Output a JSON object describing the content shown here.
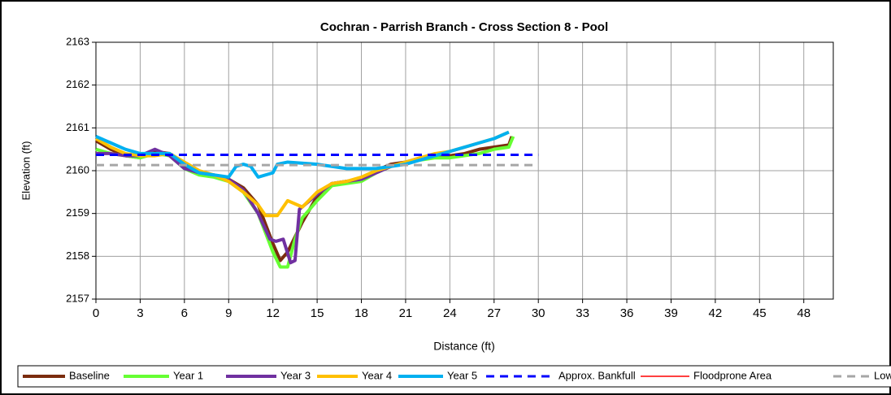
{
  "chart_data": {
    "type": "line",
    "title": "Cochran - Parrish Branch - Cross Section 8 - Pool",
    "x_label": "Distance (ft)",
    "y_label": "Elevation (ft)",
    "xlim": [
      0,
      50
    ],
    "ylim": [
      2157,
      2163
    ],
    "xticks": [
      0,
      3,
      6,
      9,
      12,
      15,
      18,
      21,
      24,
      27,
      30,
      33,
      36,
      39,
      42,
      45,
      48
    ],
    "yticks": [
      2157,
      2158,
      2159,
      2160,
      2161,
      2162,
      2163
    ],
    "grid": true,
    "legend": "bottom",
    "series": [
      {
        "name": "Baseline",
        "color": "#7b2c0e",
        "style": "solid",
        "x": [
          0,
          1,
          2,
          3,
          4,
          5,
          6,
          7,
          8,
          9,
          10,
          11,
          12,
          12.5,
          13,
          14,
          15,
          16,
          17,
          18,
          19,
          20,
          21,
          22,
          23,
          24,
          25,
          26,
          27,
          28,
          28.2
        ],
        "values": [
          2160.7,
          2160.5,
          2160.35,
          2160.3,
          2160.45,
          2160.4,
          2160.1,
          2159.95,
          2159.9,
          2159.8,
          2159.6,
          2159.2,
          2158.3,
          2157.9,
          2158.1,
          2158.8,
          2159.4,
          2159.7,
          2159.75,
          2159.8,
          2160.0,
          2160.15,
          2160.2,
          2160.3,
          2160.35,
          2160.35,
          2160.4,
          2160.5,
          2160.55,
          2160.6,
          2160.8
        ]
      },
      {
        "name": "Year 1",
        "color": "#66ff33",
        "style": "solid",
        "x": [
          0,
          1,
          2,
          3,
          4,
          5,
          6,
          7,
          8,
          9,
          10,
          11,
          12,
          12.5,
          13,
          13.5,
          14,
          15,
          16,
          17,
          18,
          19,
          20,
          21,
          22,
          23,
          24,
          25,
          26,
          27,
          28,
          28.3
        ],
        "values": [
          2160.5,
          2160.4,
          2160.35,
          2160.3,
          2160.4,
          2160.35,
          2160.05,
          2159.9,
          2159.85,
          2159.75,
          2159.5,
          2159.0,
          2158.1,
          2157.75,
          2157.75,
          2158.4,
          2158.9,
          2159.3,
          2159.65,
          2159.7,
          2159.75,
          2159.95,
          2160.1,
          2160.2,
          2160.25,
          2160.3,
          2160.3,
          2160.35,
          2160.4,
          2160.5,
          2160.55,
          2160.8
        ]
      },
      {
        "name": "Year 3",
        "color": "#7030a0",
        "style": "solid",
        "x": [
          0,
          1,
          2,
          3,
          4,
          5,
          6,
          7,
          8,
          9,
          10,
          11,
          11.8,
          12.2,
          12.7,
          13.2,
          13.5,
          13.8,
          14.5,
          15,
          16,
          17,
          18,
          19,
          20,
          21
        ],
        "values": [
          2160.4,
          2160.4,
          2160.35,
          2160.35,
          2160.5,
          2160.35,
          2160.05,
          2159.95,
          2159.9,
          2159.8,
          2159.55,
          2159.0,
          2158.4,
          2158.35,
          2158.4,
          2157.85,
          2157.9,
          2159.1,
          2159.3,
          2159.45,
          2159.7,
          2159.75,
          2159.8,
          2159.95,
          2160.1,
          2160.2
        ]
      },
      {
        "name": "Year 4",
        "color": "#ffc000",
        "style": "solid",
        "x": [
          0,
          1,
          2,
          3,
          4,
          5,
          6,
          7,
          8,
          9,
          10,
          11,
          11.5,
          12.3,
          13,
          14,
          15,
          16,
          17,
          18,
          19,
          20,
          21,
          22,
          23,
          24,
          25,
          26,
          27,
          28
        ],
        "values": [
          2160.75,
          2160.55,
          2160.4,
          2160.35,
          2160.35,
          2160.4,
          2160.2,
          2160.0,
          2159.9,
          2159.75,
          2159.5,
          2159.2,
          2158.95,
          2158.95,
          2159.3,
          2159.15,
          2159.5,
          2159.7,
          2159.75,
          2159.85,
          2160.0,
          2160.1,
          2160.2,
          2160.3,
          2160.4,
          2160.45,
          2160.55,
          2160.65,
          2160.75,
          2160.9
        ]
      },
      {
        "name": "Year 5",
        "color": "#00b0f0",
        "style": "solid",
        "x": [
          0,
          1,
          2,
          3,
          4,
          5,
          6,
          7,
          8,
          9,
          9.5,
          10,
          10.5,
          11,
          12,
          12.3,
          13,
          15,
          17,
          19,
          21,
          22,
          23,
          24,
          25,
          26,
          27,
          28
        ],
        "values": [
          2160.8,
          2160.65,
          2160.5,
          2160.4,
          2160.4,
          2160.4,
          2160.15,
          2159.95,
          2159.9,
          2159.85,
          2160.1,
          2160.15,
          2160.1,
          2159.85,
          2159.95,
          2160.15,
          2160.2,
          2160.15,
          2160.05,
          2160.05,
          2160.15,
          2160.25,
          2160.35,
          2160.45,
          2160.55,
          2160.65,
          2160.75,
          2160.9
        ]
      },
      {
        "name": "Approx. Bankfull",
        "color": "#0000ff",
        "style": "dashed",
        "x": [
          0,
          30
        ],
        "values": [
          2160.37,
          2160.37
        ]
      },
      {
        "name": "Floodprone Area",
        "color": "#ff0000",
        "style": "solid",
        "x": [],
        "values": []
      },
      {
        "name": "Low TOB",
        "color": "#a6a6a6",
        "style": "dashed",
        "x": [
          0,
          30
        ],
        "values": [
          2160.13,
          2160.13
        ]
      }
    ]
  }
}
